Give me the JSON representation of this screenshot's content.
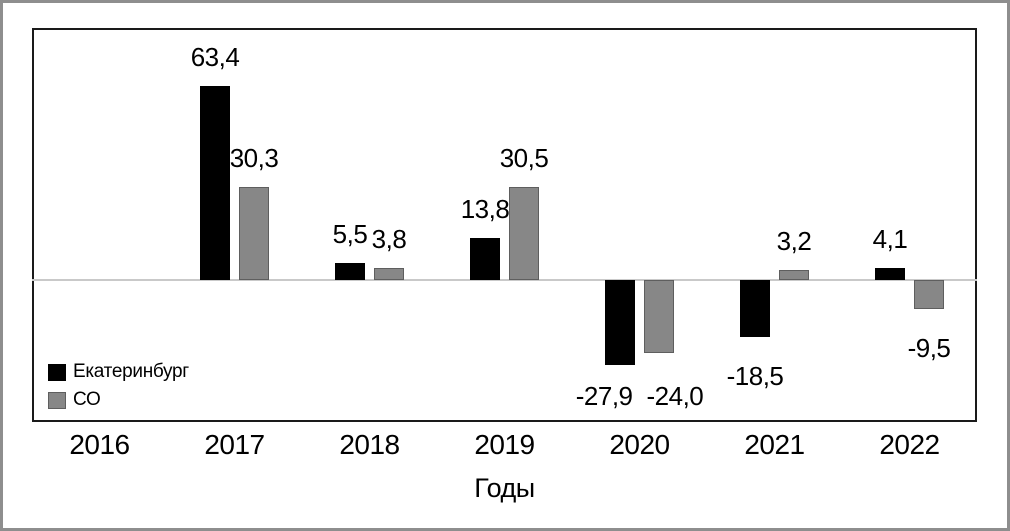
{
  "chart_data": {
    "type": "bar",
    "categories": [
      "2016",
      "2017",
      "2018",
      "2019",
      "2020",
      "2021",
      "2022"
    ],
    "series": [
      {
        "name": "Екатеринбург",
        "color": "#000000",
        "border_color": "#000000",
        "values": [
          null,
          63.4,
          5.5,
          13.8,
          -27.9,
          -18.5,
          4.1
        ],
        "labels": [
          null,
          "63,4",
          "5,5",
          "13,8",
          "-27,9",
          "-18,5",
          "4,1"
        ]
      },
      {
        "name": "СО",
        "color": "#878787",
        "border_color": "#5e5e5e",
        "values": [
          null,
          30.3,
          3.8,
          30.5,
          -24.0,
          3.2,
          -9.5
        ],
        "labels": [
          null,
          "30,3",
          "3,8",
          "30,5",
          "-24,0",
          "3,2",
          "-9,5"
        ]
      }
    ],
    "xlabel": "Годы",
    "ylim": [
      -46.4,
      82.4
    ],
    "grid": false,
    "legend_position": "inside-bottom-left",
    "zero_line_color": "#c9c9c9",
    "plot_border_color": "#1a1a1a",
    "outer_frame_color": "#8e8e8e",
    "background_color": "#ffffff"
  }
}
